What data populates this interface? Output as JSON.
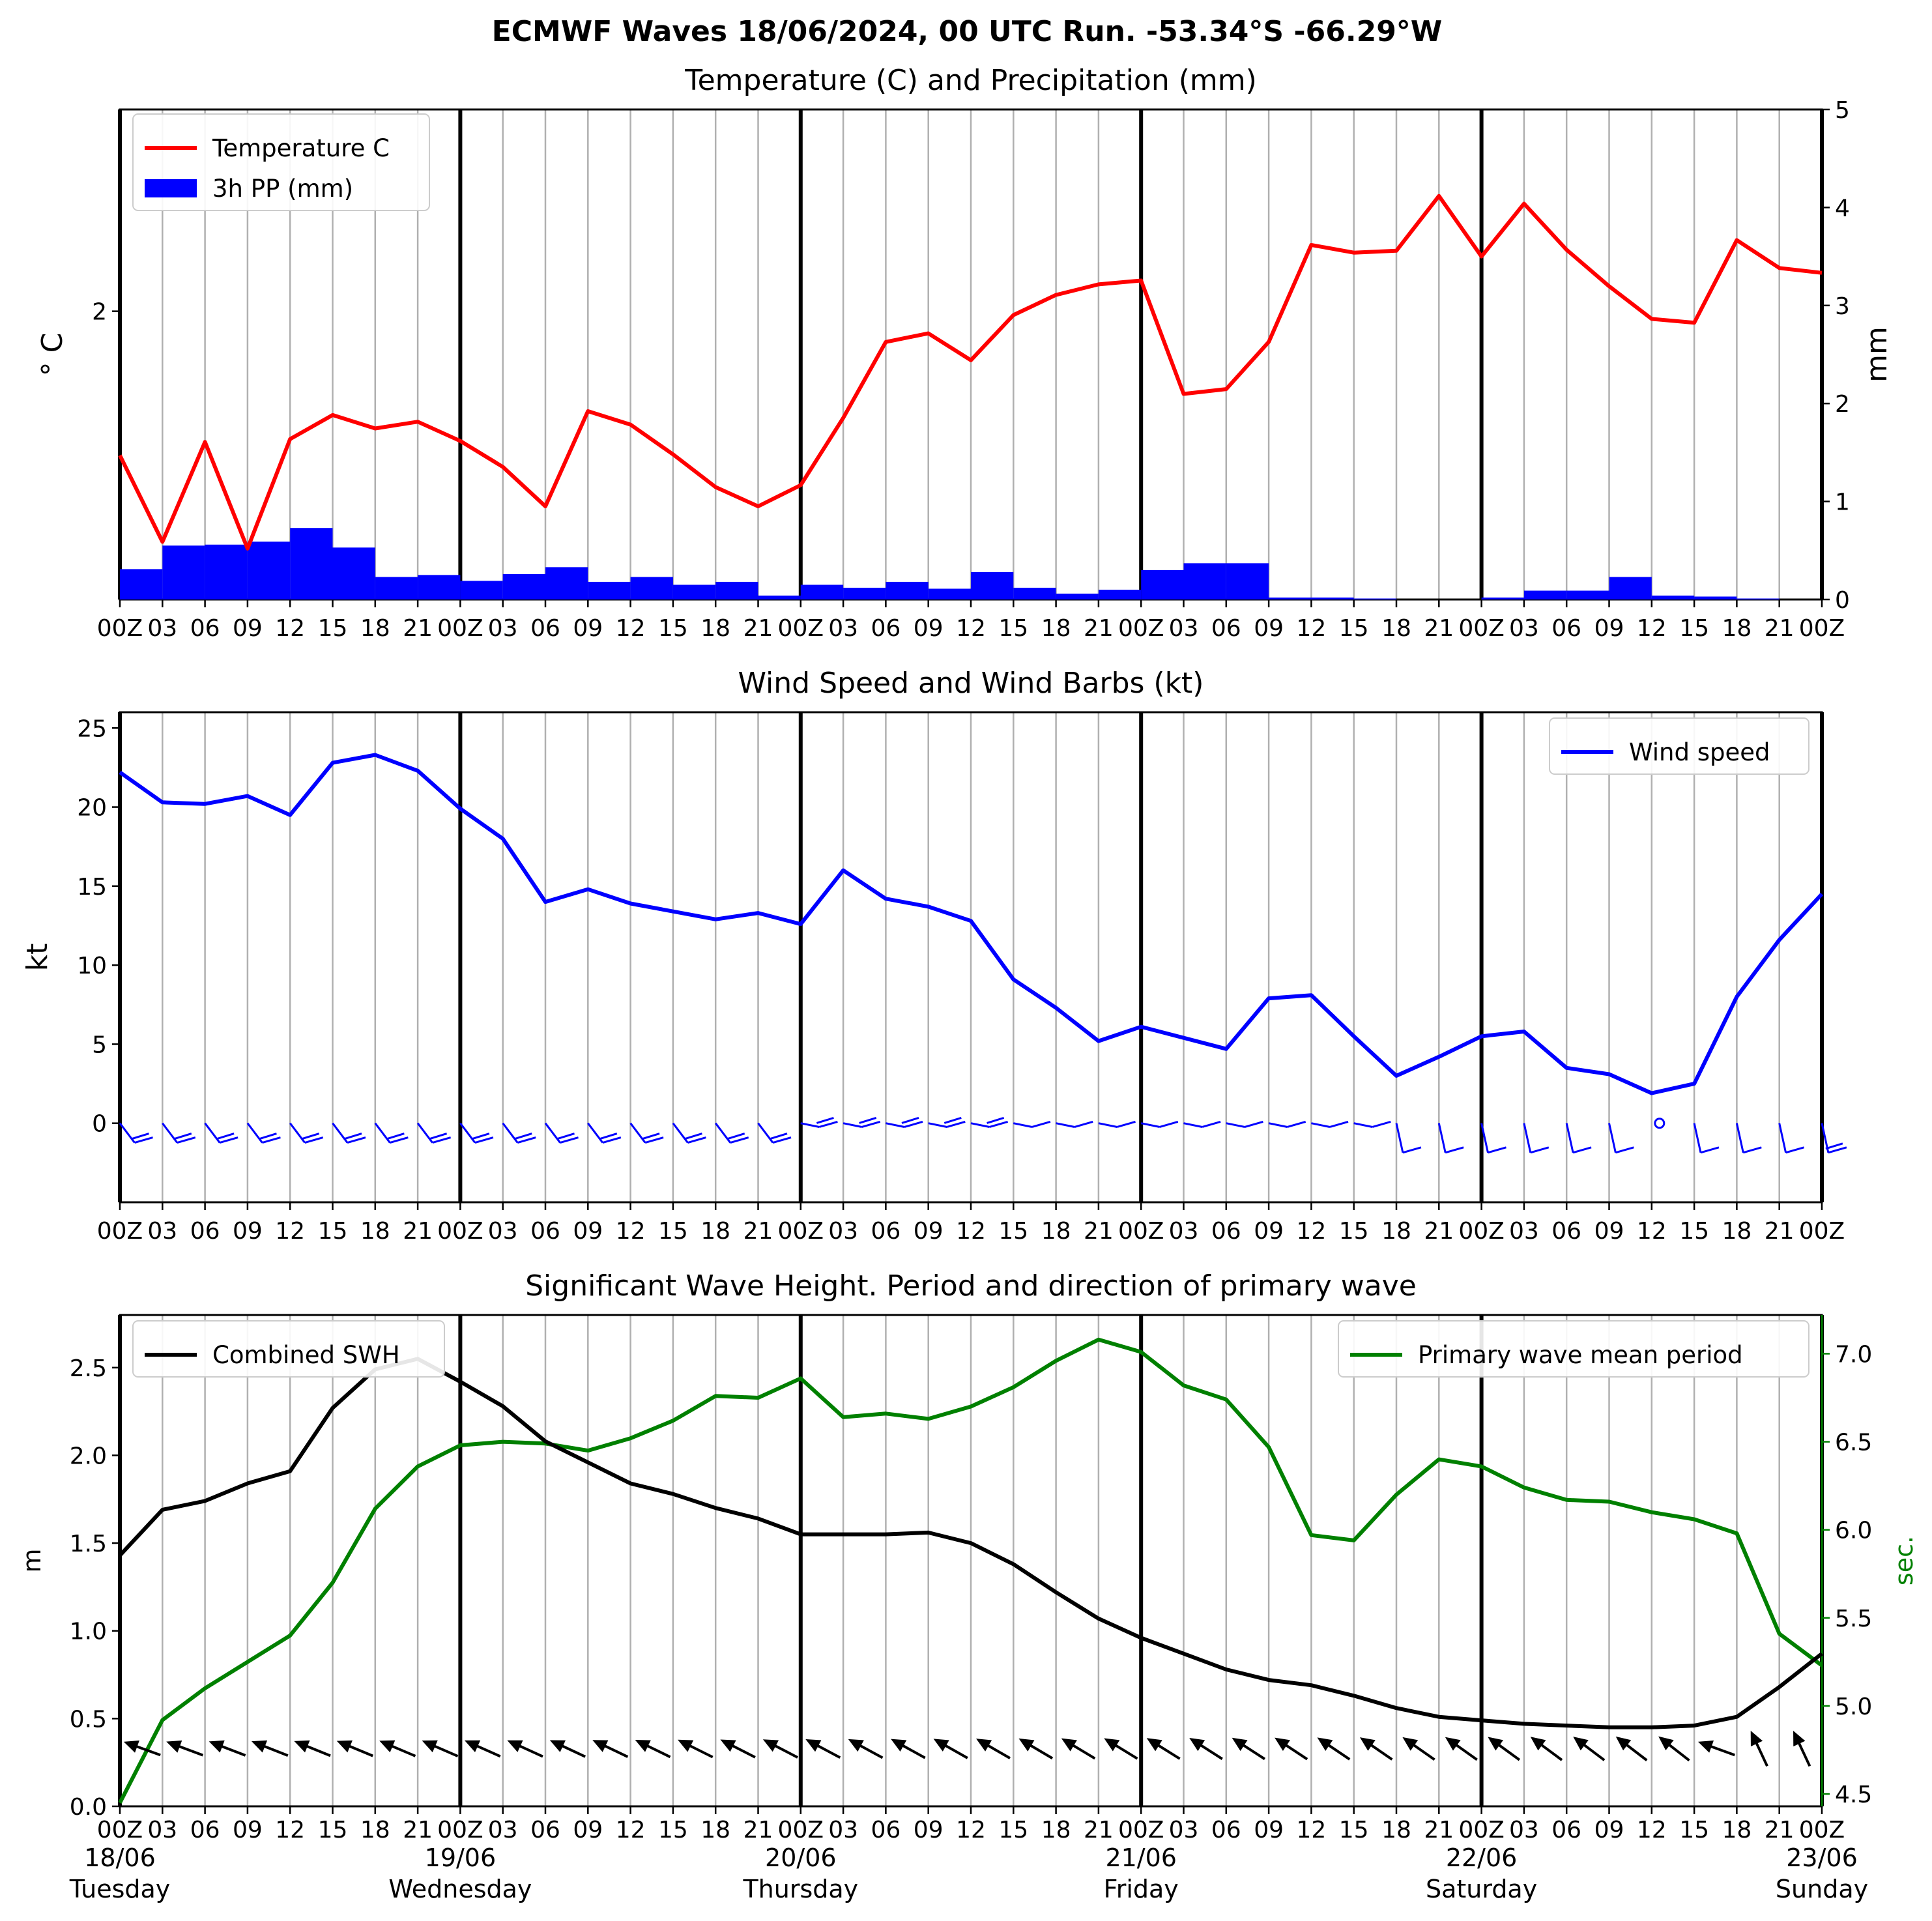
{
  "page": {
    "title": "ECMWF Waves 18/06/2024, 00 UTC Run. -53.34°S -66.29°W"
  },
  "colors": {
    "temperature": "#ff0000",
    "precip": "#0000ff",
    "wind": "#0000ff",
    "swh": "#000000",
    "period": "#008000",
    "grid": "#b0b0b0"
  },
  "x_ticks": [
    "00Z",
    "03",
    "06",
    "09",
    "12",
    "15",
    "18",
    "21",
    "00Z",
    "03",
    "06",
    "09",
    "12",
    "15",
    "18",
    "21",
    "00Z",
    "03",
    "06",
    "09",
    "12",
    "15",
    "18",
    "21",
    "00Z",
    "03",
    "06",
    "09",
    "12",
    "15",
    "18",
    "21",
    "00Z",
    "03",
    "06",
    "09",
    "12",
    "15",
    "18",
    "21",
    "00Z"
  ],
  "day_labels": [
    {
      "date": "18/06",
      "day": "Tuesday",
      "step": 0
    },
    {
      "date": "19/06",
      "day": "Wednesday",
      "step": 8
    },
    {
      "date": "20/06",
      "day": "Thursday",
      "step": 16
    },
    {
      "date": "21/06",
      "day": "Friday",
      "step": 24
    },
    {
      "date": "22/06",
      "day": "Saturday",
      "step": 32
    },
    {
      "date": "23/06",
      "day": "Sunday",
      "step": 40
    }
  ],
  "chart_data": [
    {
      "type": "line",
      "title": "Temperature (C) and Precipitation (mm)",
      "ylabel": "$^\\circ$C",
      "ylabel_display": "° C",
      "y2label": "mm",
      "x_step_hours": 3,
      "x_count": 41,
      "ylim": [
        -1.0,
        4.1
      ],
      "yticks": [
        2
      ],
      "y2lim": [
        0,
        5
      ],
      "y2ticks": [
        0,
        1,
        2,
        3,
        4,
        5
      ],
      "legend_position": "top-left",
      "series": [
        {
          "name": "Temperature C",
          "type": "line",
          "axis": "left",
          "values": [
            0.5,
            -0.4,
            0.64,
            -0.47,
            0.67,
            0.92,
            0.78,
            0.85,
            0.65,
            0.38,
            -0.03,
            0.96,
            0.82,
            0.51,
            0.17,
            -0.03,
            0.19,
            0.89,
            1.68,
            1.77,
            1.49,
            1.96,
            2.17,
            2.28,
            2.32,
            1.14,
            1.19,
            1.68,
            2.69,
            2.61,
            2.63,
            3.2,
            2.57,
            3.12,
            2.64,
            2.26,
            1.92,
            1.88,
            2.74,
            2.45,
            2.4
          ]
        },
        {
          "name": "3h PP (mm)",
          "type": "bar",
          "axis": "right",
          "values": [
            0.31,
            0.55,
            0.56,
            0.59,
            0.73,
            0.53,
            0.23,
            0.25,
            0.19,
            0.26,
            0.33,
            0.18,
            0.23,
            0.15,
            0.18,
            0.04,
            0.15,
            0.12,
            0.18,
            0.11,
            0.28,
            0.12,
            0.06,
            0.1,
            0.3,
            0.37,
            0.37,
            0.02,
            0.02,
            0.01,
            0.0,
            0.0,
            0.02,
            0.09,
            0.09,
            0.23,
            0.04,
            0.03,
            0.01,
            0.0
          ]
        }
      ]
    },
    {
      "type": "line",
      "title": "Wind Speed and Wind Barbs (kt)",
      "ylabel": "kt",
      "x_step_hours": 3,
      "x_count": 41,
      "ylim": [
        -5,
        26
      ],
      "yticks": [
        0,
        5,
        10,
        15,
        20,
        25
      ],
      "legend_position": "top-right",
      "series": [
        {
          "name": "Wind speed",
          "values": [
            22.2,
            20.3,
            20.2,
            20.7,
            19.5,
            22.8,
            23.3,
            22.3,
            19.9,
            18.0,
            14.0,
            14.8,
            13.9,
            13.4,
            12.9,
            13.3,
            12.6,
            16.0,
            14.2,
            13.7,
            12.8,
            9.1,
            7.3,
            5.2,
            6.1,
            5.4,
            4.7,
            7.9,
            8.1,
            5.5,
            3.0,
            4.2,
            5.5,
            5.8,
            3.5,
            3.1,
            1.9,
            2.5,
            8.0,
            11.6,
            14.5
          ]
        }
      ],
      "wind_barbs": {
        "count": 41,
        "description": "wind barbs drawn along y=0"
      }
    },
    {
      "type": "line",
      "title": "Significant Wave Height. Period and direction of primary wave",
      "ylabel": "m",
      "y2label": "sec.",
      "x_step_hours": 3,
      "x_count": 41,
      "ylim": [
        0,
        2.8
      ],
      "yticks": [
        0.0,
        0.5,
        1.0,
        1.5,
        2.0,
        2.5
      ],
      "y2lim": [
        4.43,
        7.22
      ],
      "y2ticks": [
        4.5,
        5.0,
        5.5,
        6.0,
        6.5,
        7.0
      ],
      "legend_left": "top-left",
      "legend_right": "top-right",
      "series": [
        {
          "name": "Combined SWH",
          "axis": "left",
          "values": [
            1.43,
            1.69,
            1.74,
            1.84,
            1.91,
            2.27,
            2.49,
            2.55,
            2.42,
            2.28,
            2.08,
            1.96,
            1.84,
            1.78,
            1.7,
            1.64,
            1.55,
            1.55,
            1.55,
            1.56,
            1.5,
            1.38,
            1.22,
            1.07,
            0.96,
            0.87,
            0.78,
            0.72,
            0.69,
            0.63,
            0.56,
            0.51,
            0.49,
            0.47,
            0.46,
            0.45,
            0.45,
            0.46,
            0.51,
            0.68,
            0.87
          ]
        },
        {
          "name": "Primary wave mean period",
          "axis": "right",
          "values": [
            4.45,
            4.92,
            5.1,
            5.25,
            5.4,
            5.7,
            6.12,
            6.36,
            6.48,
            6.5,
            6.49,
            6.45,
            6.52,
            6.62,
            6.76,
            6.75,
            6.86,
            6.64,
            6.66,
            6.63,
            6.7,
            6.81,
            6.96,
            7.08,
            7.01,
            6.82,
            6.74,
            6.47,
            5.97,
            5.94,
            6.2,
            6.4,
            6.36,
            6.24,
            6.17,
            6.16,
            6.1,
            6.06,
            5.98,
            5.41,
            5.23
          ]
        }
      ],
      "wave_direction_arrows": {
        "count": 40,
        "description": "direction of primary wave"
      }
    }
  ]
}
